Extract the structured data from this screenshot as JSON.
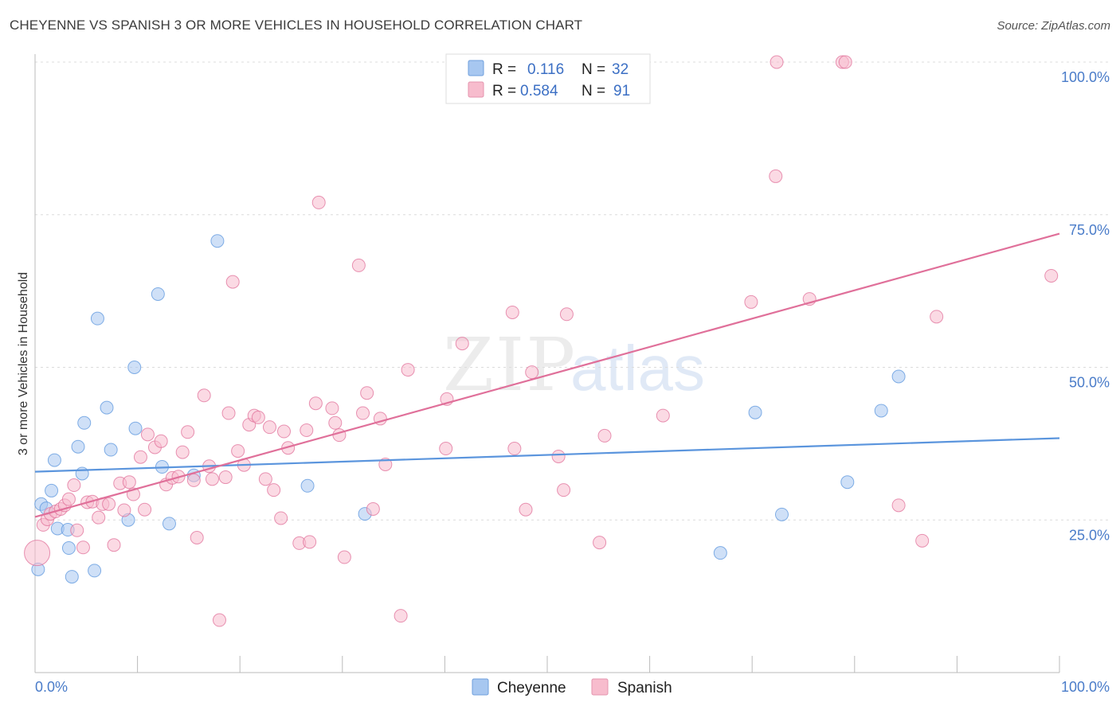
{
  "title": "CHEYENNE VS SPANISH 3 OR MORE VEHICLES IN HOUSEHOLD CORRELATION CHART",
  "source": "Source: ZipAtlas.com",
  "watermark": {
    "zip": "ZIP",
    "atlas": "atlas"
  },
  "legend": [
    {
      "r_label": "R =",
      "r_value": "0.116",
      "n_label": "N =",
      "n_value": "32",
      "color": "#a7c7f0"
    },
    {
      "r_label": "R =",
      "r_value": "0.584",
      "n_label": "N =",
      "n_value": "91",
      "color": "#f7bccd"
    }
  ],
  "bottom_legend": [
    "Cheyenne",
    "Spanish"
  ],
  "chart_data": {
    "type": "scatter",
    "title": "CHEYENNE VS SPANISH 3 OR MORE VEHICLES IN HOUSEHOLD CORRELATION CHART",
    "xlabel": "",
    "ylabel": "3 or more Vehicles in Household",
    "xlim": [
      0,
      100
    ],
    "ylim": [
      0,
      100
    ],
    "x_tick_labels": [
      "0.0%",
      "100.0%"
    ],
    "y_tick_labels": [
      "25.0%",
      "50.0%",
      "75.0%",
      "100.0%"
    ],
    "y_ticks": [
      25,
      50,
      75,
      100
    ],
    "grid": true,
    "legend_position": "top-center",
    "series": [
      {
        "name": "Cheyenne",
        "color": "#5b95dd",
        "fill": "#a7c7f0",
        "trend": {
          "x": [
            0,
            100
          ],
          "y": [
            32.9,
            38.4
          ]
        },
        "points": [
          [
            0.3,
            16.9
          ],
          [
            0.6,
            27.6
          ],
          [
            1.1,
            26.9
          ],
          [
            1.6,
            29.8
          ],
          [
            1.9,
            34.8
          ],
          [
            2.2,
            23.6
          ],
          [
            3.2,
            23.4
          ],
          [
            3.3,
            20.4
          ],
          [
            3.6,
            15.7
          ],
          [
            4.2,
            37.0
          ],
          [
            4.6,
            32.6
          ],
          [
            4.8,
            40.9
          ],
          [
            5.8,
            16.7
          ],
          [
            6.1,
            58.0
          ],
          [
            7.0,
            43.4
          ],
          [
            7.4,
            36.5
          ],
          [
            9.1,
            25.0
          ],
          [
            9.7,
            50.0
          ],
          [
            9.8,
            40.0
          ],
          [
            12.0,
            62.0
          ],
          [
            12.4,
            33.7
          ],
          [
            13.1,
            24.4
          ],
          [
            15.5,
            32.3
          ],
          [
            17.8,
            70.7
          ],
          [
            26.6,
            30.6
          ],
          [
            32.2,
            26.0
          ],
          [
            66.9,
            19.6
          ],
          [
            70.3,
            42.6
          ],
          [
            72.9,
            25.9
          ],
          [
            79.3,
            31.2
          ],
          [
            82.6,
            42.9
          ],
          [
            84.3,
            48.5
          ]
        ]
      },
      {
        "name": "Spanish",
        "color": "#e0709a",
        "fill": "#f7bccd",
        "trend": {
          "x": [
            0,
            100
          ],
          "y": [
            25.5,
            71.9
          ]
        },
        "points": [
          [
            0.2,
            19.6
          ],
          [
            0.8,
            24.2
          ],
          [
            1.2,
            25.1
          ],
          [
            1.5,
            26.0
          ],
          [
            2.0,
            26.4
          ],
          [
            2.5,
            26.8
          ],
          [
            2.9,
            27.4
          ],
          [
            3.3,
            28.4
          ],
          [
            3.8,
            30.7
          ],
          [
            4.1,
            23.3
          ],
          [
            4.7,
            20.5
          ],
          [
            5.1,
            27.9
          ],
          [
            5.6,
            28.0
          ],
          [
            6.2,
            25.4
          ],
          [
            6.6,
            27.6
          ],
          [
            7.2,
            27.6
          ],
          [
            7.7,
            20.9
          ],
          [
            8.3,
            31.0
          ],
          [
            8.7,
            26.6
          ],
          [
            9.2,
            31.2
          ],
          [
            9.6,
            29.2
          ],
          [
            10.3,
            35.3
          ],
          [
            10.7,
            26.7
          ],
          [
            11.0,
            39.0
          ],
          [
            11.7,
            36.9
          ],
          [
            12.3,
            37.9
          ],
          [
            12.8,
            30.8
          ],
          [
            13.4,
            31.9
          ],
          [
            14.0,
            32.1
          ],
          [
            14.4,
            36.1
          ],
          [
            14.9,
            39.4
          ],
          [
            15.5,
            31.5
          ],
          [
            15.8,
            22.1
          ],
          [
            16.5,
            45.4
          ],
          [
            17.0,
            33.8
          ],
          [
            17.3,
            31.7
          ],
          [
            18.0,
            8.6
          ],
          [
            18.6,
            32.0
          ],
          [
            18.9,
            42.5
          ],
          [
            19.3,
            64.0
          ],
          [
            19.8,
            36.3
          ],
          [
            20.4,
            34.0
          ],
          [
            20.9,
            40.6
          ],
          [
            21.4,
            42.1
          ],
          [
            21.8,
            41.8
          ],
          [
            22.5,
            31.7
          ],
          [
            22.9,
            40.2
          ],
          [
            23.3,
            29.9
          ],
          [
            24.0,
            25.3
          ],
          [
            24.3,
            39.5
          ],
          [
            24.7,
            36.8
          ],
          [
            25.8,
            21.2
          ],
          [
            26.5,
            39.7
          ],
          [
            26.8,
            21.4
          ],
          [
            27.4,
            44.1
          ],
          [
            27.7,
            77.0
          ],
          [
            29.0,
            43.3
          ],
          [
            29.3,
            40.9
          ],
          [
            29.7,
            38.9
          ],
          [
            30.2,
            18.9
          ],
          [
            31.6,
            66.7
          ],
          [
            32.0,
            42.5
          ],
          [
            32.4,
            45.8
          ],
          [
            33.0,
            26.8
          ],
          [
            33.7,
            41.6
          ],
          [
            34.2,
            34.1
          ],
          [
            35.7,
            9.3
          ],
          [
            36.4,
            49.6
          ],
          [
            40.1,
            36.7
          ],
          [
            40.2,
            44.8
          ],
          [
            41.7,
            53.9
          ],
          [
            46.6,
            59.0
          ],
          [
            46.8,
            36.7
          ],
          [
            47.9,
            26.7
          ],
          [
            48.5,
            49.2
          ],
          [
            51.1,
            35.4
          ],
          [
            51.6,
            29.9
          ],
          [
            51.9,
            58.7
          ],
          [
            55.1,
            21.3
          ],
          [
            55.6,
            38.8
          ],
          [
            61.3,
            42.1
          ],
          [
            69.9,
            60.7
          ],
          [
            72.3,
            81.3
          ],
          [
            72.4,
            100.0
          ],
          [
            75.6,
            61.2
          ],
          [
            78.8,
            100.0
          ],
          [
            79.1,
            100.0
          ],
          [
            84.3,
            27.4
          ],
          [
            86.6,
            21.6
          ],
          [
            88.0,
            58.3
          ],
          [
            99.2,
            65.0
          ]
        ]
      }
    ]
  }
}
